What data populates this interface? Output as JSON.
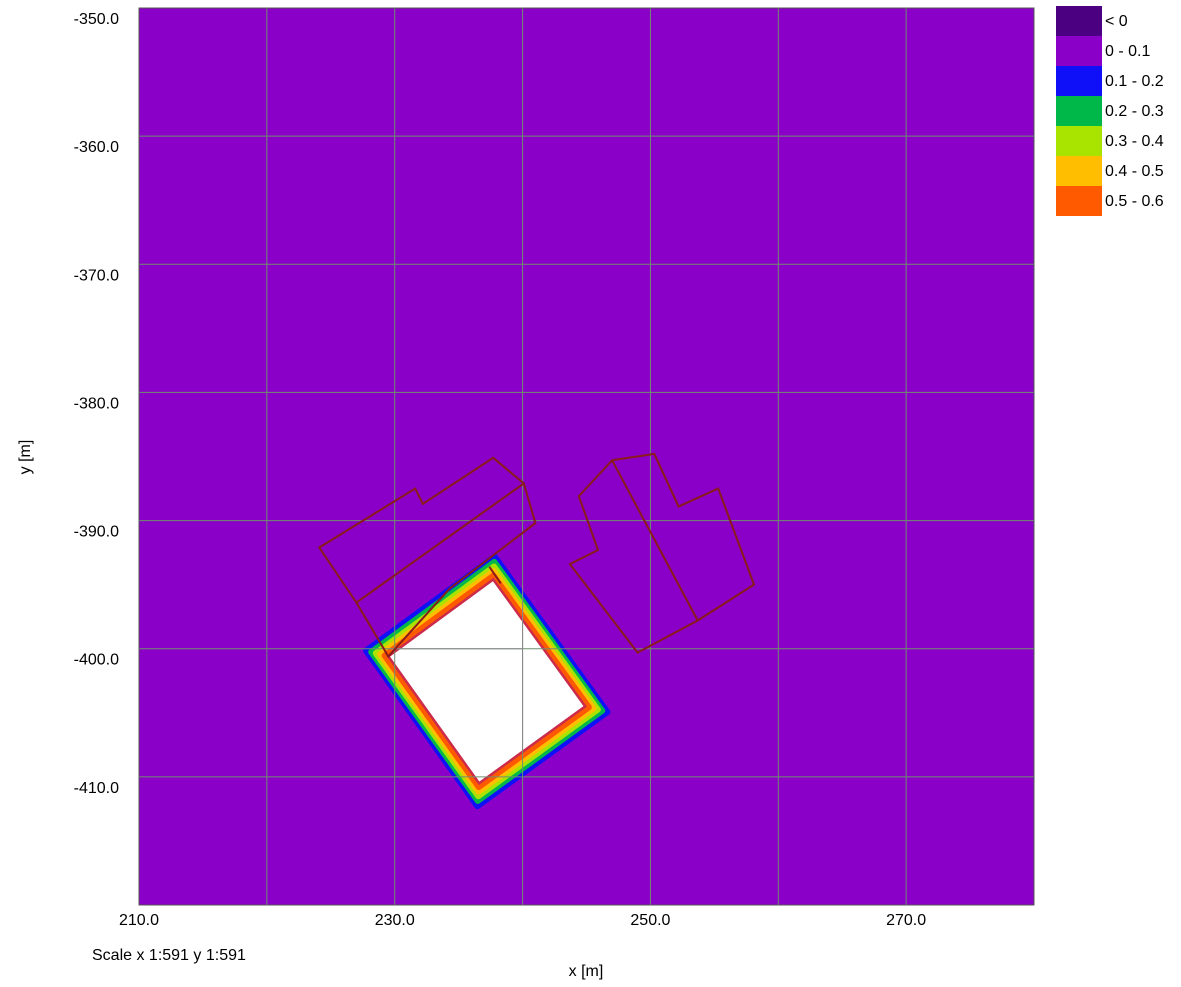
{
  "chart_data": {
    "type": "heatmap",
    "title": "",
    "xlabel": "x [m]",
    "ylabel": "y [m]",
    "xlim": [
      210,
      280
    ],
    "ylim": [
      -420,
      -350
    ],
    "x_ticks": [
      {
        "value": 210,
        "label": "210.0"
      },
      {
        "value": 230,
        "label": "230.0"
      },
      {
        "value": 250,
        "label": "250.0"
      },
      {
        "value": 270,
        "label": "270.0"
      }
    ],
    "y_ticks": [
      {
        "value": -350,
        "label": "-350.0"
      },
      {
        "value": -360,
        "label": "-360.0"
      },
      {
        "value": -370,
        "label": "-370.0"
      },
      {
        "value": -380,
        "label": "-380.0"
      },
      {
        "value": -390,
        "label": "-390.0"
      },
      {
        "value": -400,
        "label": "-400.0"
      },
      {
        "value": -410,
        "label": "-410.0"
      }
    ],
    "grid_step": 10,
    "grid": true,
    "background_class": "0 - 0.1",
    "legend_position": "top-right",
    "legend": [
      {
        "label": "< 0",
        "color": "#4B0082"
      },
      {
        "label": "0 - 0.1",
        "color": "#8A00C8"
      },
      {
        "label": "0.1 - 0.2",
        "color": "#1010F8"
      },
      {
        "label": "0.2 - 0.3",
        "color": "#00B84A"
      },
      {
        "label": "0.3 - 0.4",
        "color": "#A8E400"
      },
      {
        "label": "0.4 - 0.5",
        "color": "#FFBF00"
      },
      {
        "label": "0.5 - 0.6",
        "color": "#FF5A00"
      }
    ],
    "central_building": [
      [
        229.5,
        -400.6
      ],
      [
        237.7,
        -394.6
      ],
      [
        244.9,
        -404.5
      ],
      [
        236.6,
        -410.5
      ]
    ],
    "contour_bands": [
      {
        "class": "0.1 - 0.2",
        "offset": 1.5
      },
      {
        "class": "0.2 - 0.3",
        "offset": 1.15
      },
      {
        "class": "0.3 - 0.4",
        "offset": 0.85
      },
      {
        "class": "0.4 - 0.5",
        "offset": 0.55
      },
      {
        "class": "0.5 - 0.6",
        "offset": 0.25
      }
    ],
    "building_outline_color": "#8B1A1A",
    "buildings": [
      [
        [
          224.1,
          -392.1
        ],
        [
          231.6,
          -387.5
        ],
        [
          232.2,
          -388.7
        ],
        [
          237.7,
          -385.1
        ],
        [
          240.1,
          -387.1
        ],
        [
          241.0,
          -390.2
        ],
        [
          234.3,
          -395.3
        ],
        [
          229.5,
          -400.6
        ],
        [
          227.0,
          -396.4
        ]
      ],
      [
        [
          227.0,
          -396.4
        ],
        [
          240.1,
          -387.1
        ]
      ],
      [
        [
          247.0,
          -385.3
        ],
        [
          250.3,
          -384.8
        ],
        [
          252.2,
          -388.9
        ],
        [
          255.3,
          -387.5
        ],
        [
          258.1,
          -395.0
        ],
        [
          253.7,
          -397.8
        ],
        [
          249.0,
          -400.3
        ],
        [
          243.7,
          -393.4
        ],
        [
          245.9,
          -392.3
        ],
        [
          244.4,
          -388.1
        ]
      ],
      [
        [
          247.0,
          -385.3
        ],
        [
          253.7,
          -397.8
        ]
      ],
      [
        [
          237.4,
          -393.6
        ],
        [
          238.3,
          -394.9
        ]
      ]
    ],
    "white_interior_lines": [
      {
        "x1": 229.5,
        "y1": -400,
        "x2": 240.0,
        "y2": -400
      },
      {
        "x1": 240.0,
        "y1": -395.0,
        "x2": 240.0,
        "y2": -408.0
      }
    ]
  },
  "footer": {
    "scale_text": "Scale x 1:591  y 1:591"
  }
}
